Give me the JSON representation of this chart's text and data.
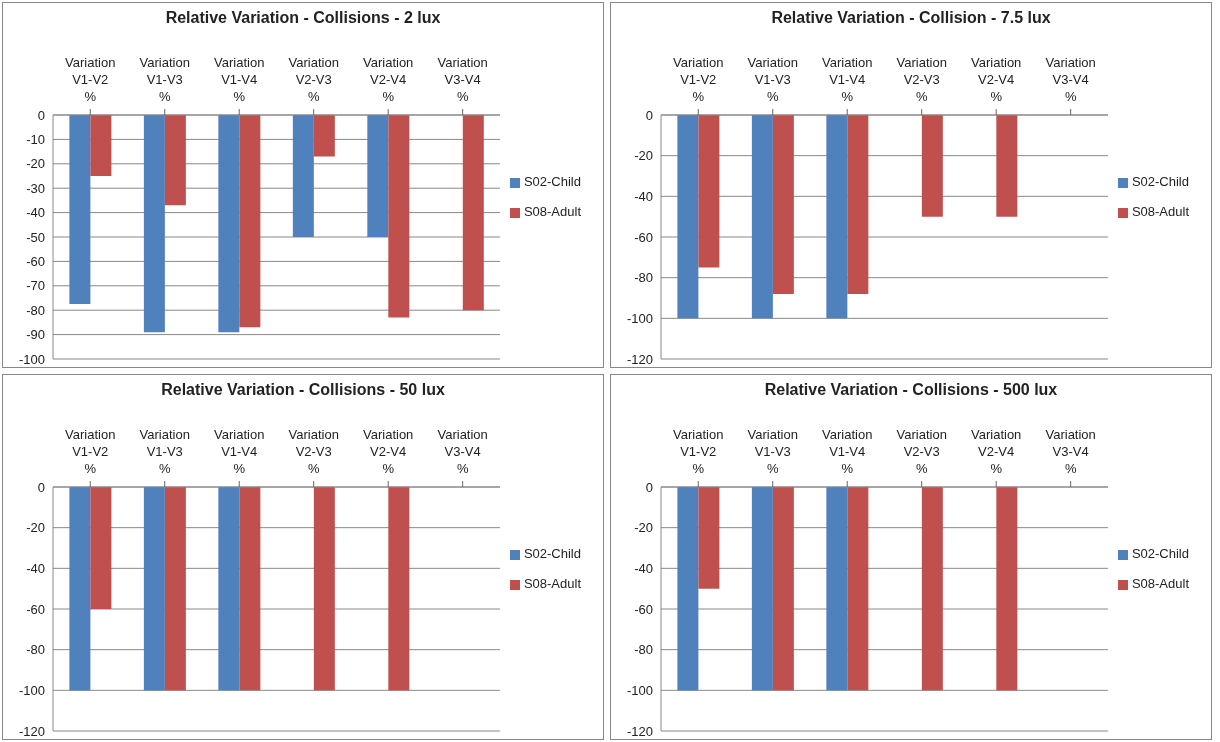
{
  "chart_data": [
    {
      "type": "bar",
      "title": "Relative Variation - Collisions - 2 lux",
      "categories": [
        "Variation V1-V2 %",
        "Variation V1-V3 %",
        "Variation V1-V4 %",
        "Variation V2-V3 %",
        "Variation V2-V4 %",
        "Variation V3-V4 %"
      ],
      "series": [
        {
          "name": "S02-Child",
          "color": "#4f81bd",
          "values": [
            -77.5,
            -89,
            -89,
            -50,
            -50,
            null
          ]
        },
        {
          "name": "S08-Adult",
          "color": "#c0504d",
          "values": [
            -25,
            -37,
            -87,
            -17,
            -83,
            -80
          ]
        }
      ],
      "ylim": [
        -100,
        0
      ],
      "yticks": [
        0,
        -10,
        -20,
        -30,
        -40,
        -50,
        -60,
        -70,
        -80,
        -90,
        -100
      ],
      "grid": "y",
      "legend": "right"
    },
    {
      "type": "bar",
      "title": "Relative Variation - Collision - 7.5 lux",
      "categories": [
        "Variation V1-V2 %",
        "Variation V1-V3 %",
        "Variation V1-V4 %",
        "Variation V2-V3 %",
        "Variation V2-V4 %",
        "Variation V3-V4 %"
      ],
      "series": [
        {
          "name": "S02-Child",
          "color": "#4f81bd",
          "values": [
            -100,
            -100,
            -100,
            null,
            null,
            null
          ]
        },
        {
          "name": "S08-Adult",
          "color": "#c0504d",
          "values": [
            -75,
            -88,
            -88,
            -50,
            -50,
            null
          ]
        }
      ],
      "ylim": [
        -120,
        0
      ],
      "yticks": [
        0,
        -20,
        -40,
        -60,
        -80,
        -100,
        -120
      ],
      "grid": "y",
      "legend": "right"
    },
    {
      "type": "bar",
      "title": "Relative Variation - Collisions - 50 lux",
      "categories": [
        "Variation V1-V2 %",
        "Variation V1-V3 %",
        "Variation V1-V4 %",
        "Variation V2-V3 %",
        "Variation V2-V4 %",
        "Variation V3-V4 %"
      ],
      "series": [
        {
          "name": "S02-Child",
          "color": "#4f81bd",
          "values": [
            -100,
            -100,
            -100,
            null,
            null,
            null
          ]
        },
        {
          "name": "S08-Adult",
          "color": "#c0504d",
          "values": [
            -60,
            -100,
            -100,
            -100,
            -100,
            null
          ]
        }
      ],
      "ylim": [
        -120,
        0
      ],
      "yticks": [
        0,
        -20,
        -40,
        -60,
        -80,
        -100,
        -120
      ],
      "grid": "y",
      "legend": "right"
    },
    {
      "type": "bar",
      "title": "Relative Variation - Collisions - 500 lux",
      "categories": [
        "Variation V1-V2 %",
        "Variation V1-V3 %",
        "Variation V1-V4 %",
        "Variation V2-V3 %",
        "Variation V2-V4 %",
        "Variation V3-V4 %"
      ],
      "series": [
        {
          "name": "S02-Child",
          "color": "#4f81bd",
          "values": [
            -100,
            -100,
            -100,
            null,
            null,
            null
          ]
        },
        {
          "name": "S08-Adult",
          "color": "#c0504d",
          "values": [
            -50,
            -100,
            -100,
            -100,
            -100,
            null
          ]
        }
      ],
      "ylim": [
        -120,
        0
      ],
      "yticks": [
        0,
        -20,
        -40,
        -60,
        -80,
        -100,
        -120
      ],
      "grid": "y",
      "legend": "right"
    }
  ]
}
